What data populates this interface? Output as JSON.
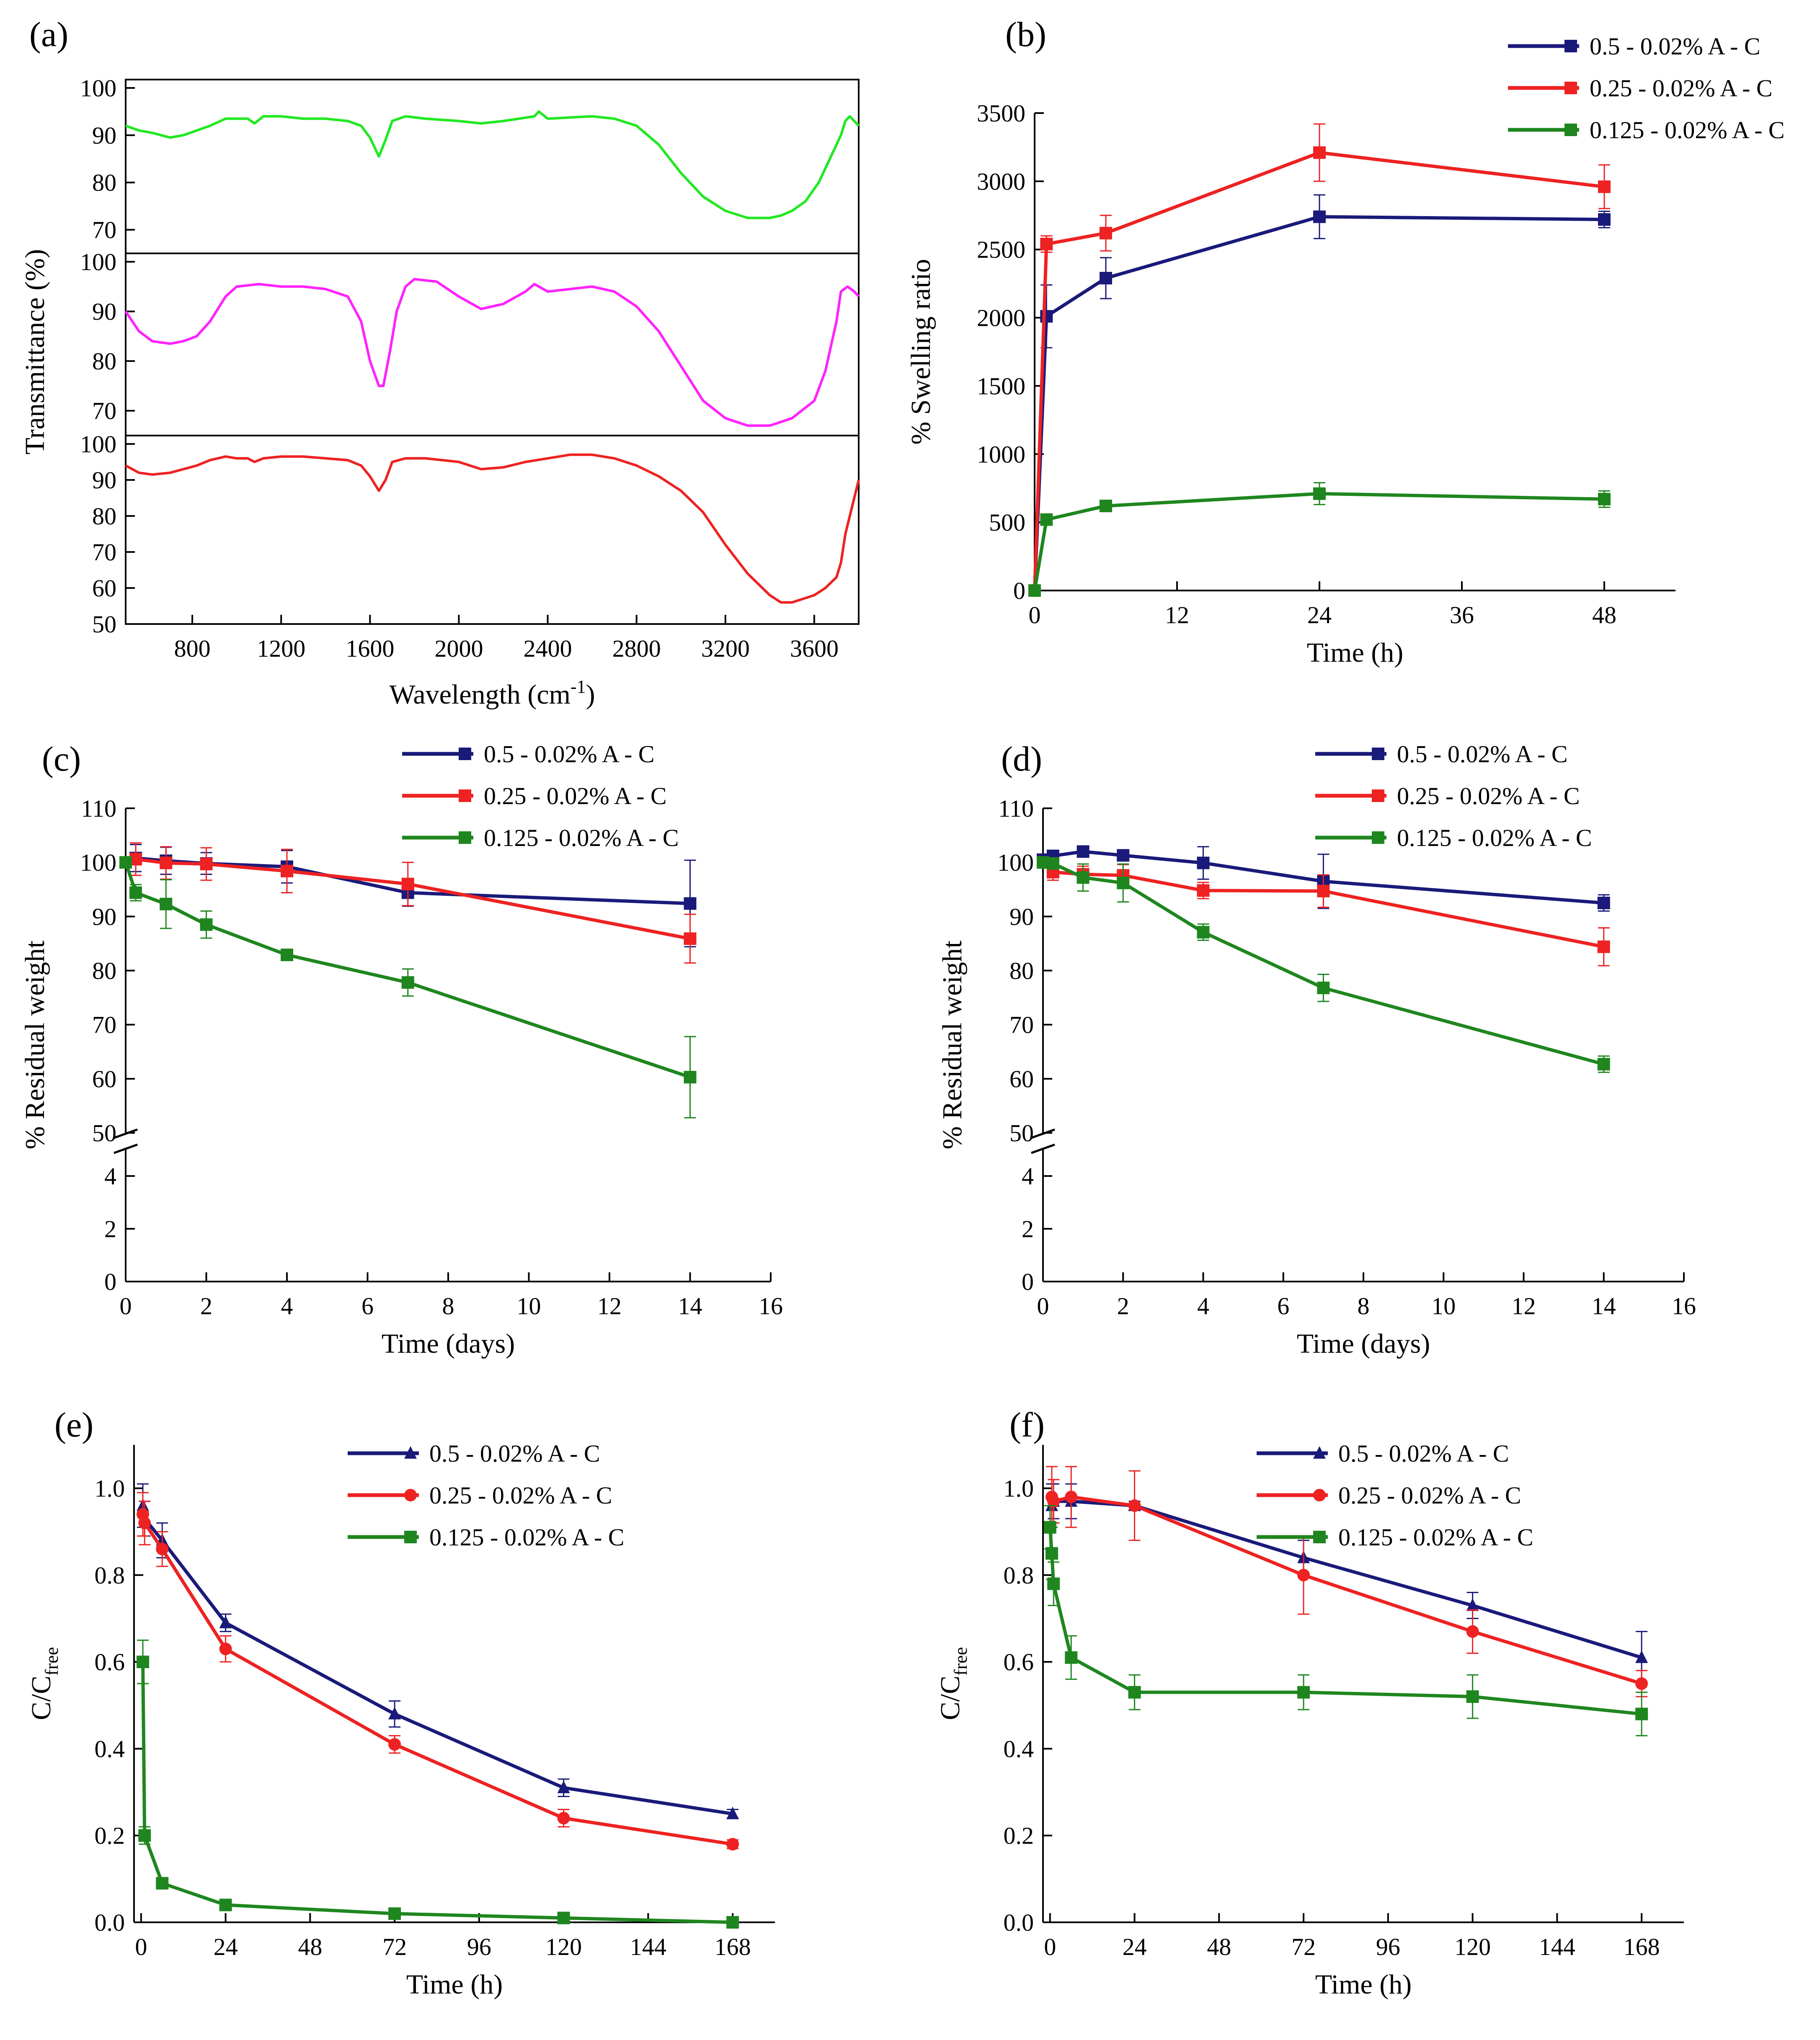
{
  "chart_data": [
    {
      "panel": "(a)",
      "type": "line",
      "title": "",
      "xlabel": "Wavelength (cm",
      "xlabel_sup": "-1",
      "xlabel_end": ")",
      "ylabel": "Transmittance (%)",
      "xlim": [
        500,
        3800
      ],
      "xticks": [
        800,
        1200,
        1600,
        2000,
        2400,
        2800,
        3200,
        3600
      ],
      "subplots": [
        {
          "color": "#22e822",
          "ylim": [
            65,
            100
          ],
          "yticks": [
            70,
            80,
            90,
            100
          ],
          "x": [
            500,
            560,
            620,
            700,
            760,
            820,
            880,
            950,
            1000,
            1050,
            1080,
            1120,
            1200,
            1300,
            1400,
            1500,
            1560,
            1600,
            1640,
            1670,
            1700,
            1760,
            1850,
            2000,
            2100,
            2200,
            2340,
            2360,
            2400,
            2600,
            2700,
            2800,
            2900,
            3000,
            3100,
            3200,
            3300,
            3400,
            3450,
            3500,
            3560,
            3620,
            3680,
            3720,
            3740,
            3760,
            3780,
            3800
          ],
          "y": [
            92,
            91,
            90.5,
            89.5,
            90,
            91,
            92,
            93.5,
            93.5,
            93.5,
            92.5,
            94,
            94,
            93.5,
            93.5,
            93,
            92,
            89.5,
            85.5,
            89,
            93,
            94,
            93.5,
            93,
            92.5,
            93,
            94,
            95,
            93.5,
            94,
            93.5,
            92,
            88,
            82,
            77,
            74,
            72.5,
            72.5,
            73,
            74,
            76,
            80,
            86,
            90,
            93,
            94,
            93,
            92
          ]
        },
        {
          "color": "#ff22ff",
          "ylim": [
            65,
            100
          ],
          "yticks": [
            70,
            80,
            90,
            100
          ],
          "x": [
            500,
            560,
            620,
            700,
            760,
            820,
            880,
            950,
            1000,
            1100,
            1200,
            1300,
            1400,
            1500,
            1560,
            1600,
            1640,
            1660,
            1690,
            1720,
            1760,
            1800,
            1900,
            2000,
            2100,
            2200,
            2300,
            2340,
            2360,
            2400,
            2500,
            2600,
            2700,
            2800,
            2900,
            3000,
            3100,
            3200,
            3300,
            3400,
            3500,
            3600,
            3650,
            3700,
            3720,
            3750,
            3780,
            3800
          ],
          "y": [
            90,
            86,
            84,
            83.5,
            84,
            85,
            88,
            93,
            95,
            95.5,
            95,
            95,
            94.5,
            93,
            88,
            80,
            75,
            75,
            82,
            90,
            95,
            96.5,
            96,
            93,
            90.5,
            91.5,
            94,
            95.5,
            95,
            94,
            94.5,
            95,
            94,
            91,
            86,
            79,
            72,
            68.5,
            67,
            67,
            68.5,
            72,
            78,
            88,
            94,
            95,
            94,
            93
          ]
        },
        {
          "color": "#ee2222",
          "ylim": [
            50,
            100
          ],
          "yticks": [
            50,
            60,
            70,
            80,
            90,
            100
          ],
          "x": [
            500,
            560,
            620,
            700,
            760,
            820,
            880,
            950,
            1000,
            1050,
            1080,
            1120,
            1200,
            1300,
            1400,
            1500,
            1560,
            1600,
            1640,
            1670,
            1700,
            1760,
            1850,
            2000,
            2100,
            2200,
            2300,
            2400,
            2500,
            2600,
            2700,
            2800,
            2900,
            3000,
            3100,
            3200,
            3300,
            3400,
            3450,
            3500,
            3550,
            3600,
            3650,
            3700,
            3720,
            3740,
            3760,
            3780,
            3800
          ],
          "y": [
            94,
            92,
            91.5,
            92,
            93,
            94,
            95.5,
            96.5,
            96,
            96,
            95,
            96,
            96.5,
            96.5,
            96,
            95.5,
            94,
            91,
            87,
            90,
            95,
            96,
            96,
            95,
            93,
            93.5,
            95,
            96,
            97,
            97,
            96,
            94,
            91,
            87,
            81,
            72,
            64,
            58,
            56,
            56,
            57,
            58,
            60,
            63,
            67,
            75,
            80,
            85,
            90
          ]
        }
      ]
    },
    {
      "panel": "(b)",
      "type": "line",
      "title": "",
      "xlabel": "Time (h)",
      "ylabel": "% Swelling ratio",
      "xlim": [
        0,
        54
      ],
      "ylim": [
        0,
        3500
      ],
      "xticks": [
        0,
        12,
        24,
        36,
        48
      ],
      "yticks": [
        0,
        500,
        1000,
        1500,
        2000,
        2500,
        3000,
        3500
      ],
      "legend_position": "top-right",
      "series": [
        {
          "name": "0.5 - 0.02% A - C",
          "color": "#1a1a7a",
          "marker": "square",
          "x": [
            0,
            1,
            6,
            24,
            48
          ],
          "y": [
            0,
            2010,
            2290,
            2740,
            2720
          ],
          "err": [
            0,
            230,
            150,
            160,
            60
          ]
        },
        {
          "name": "0.25 - 0.02% A - C",
          "color": "#ee2222",
          "marker": "square",
          "x": [
            0,
            1,
            6,
            24,
            48
          ],
          "y": [
            0,
            2540,
            2620,
            3210,
            2960
          ],
          "err": [
            0,
            60,
            130,
            210,
            160
          ]
        },
        {
          "name": "0.125 - 0.02% A - C",
          "color": "#1f861f",
          "marker": "square",
          "x": [
            0,
            1,
            6,
            24,
            48
          ],
          "y": [
            0,
            520,
            620,
            710,
            670
          ],
          "err": [
            0,
            30,
            30,
            80,
            60
          ]
        }
      ]
    },
    {
      "panel": "(c)",
      "type": "line",
      "title": "",
      "xlabel": "Time (days)",
      "ylabel": "% Residual weight",
      "xlim": [
        0,
        16
      ],
      "axis_break": true,
      "ylim_lower": [
        0,
        5
      ],
      "ylim_upper": [
        50,
        110
      ],
      "xticks": [
        0,
        2,
        4,
        6,
        8,
        10,
        12,
        14,
        16
      ],
      "yticks_lower": [
        0,
        2,
        4
      ],
      "yticks_upper": [
        50,
        60,
        70,
        80,
        90,
        100,
        110
      ],
      "legend_position": "top-right",
      "series": [
        {
          "name": "0.5 - 0.02% A - C",
          "color": "#1a1a7a",
          "marker": "square",
          "x": [
            0.25,
            1,
            2,
            4,
            7,
            14
          ],
          "y": [
            100.8,
            100.3,
            99.8,
            99.2,
            94.4,
            92.4
          ],
          "err": [
            2.5,
            2.5,
            2.0,
            3.0,
            2.5,
            8.0
          ]
        },
        {
          "name": "0.25 - 0.02% A - C",
          "color": "#ee2222",
          "marker": "square",
          "x": [
            0.25,
            1,
            2,
            4,
            7,
            14
          ],
          "y": [
            100.6,
            99.9,
            99.7,
            98.4,
            96.0,
            85.9
          ],
          "err": [
            3.0,
            3.0,
            3.0,
            4.0,
            4.0,
            4.5
          ]
        },
        {
          "name": "0.125 - 0.02% A - C",
          "color": "#1f861f",
          "marker": "square",
          "x": [
            0,
            0.25,
            1,
            2,
            4,
            7,
            14
          ],
          "y": [
            100.0,
            94.4,
            92.3,
            88.5,
            82.9,
            77.8,
            60.3
          ],
          "err": [
            0,
            1.5,
            4.5,
            2.5,
            0.5,
            2.5,
            7.5
          ]
        }
      ]
    },
    {
      "panel": "(d)",
      "type": "line",
      "title": "",
      "xlabel": "Time (days)",
      "ylabel": "% Residual weight",
      "xlim": [
        0,
        16
      ],
      "axis_break": true,
      "ylim_lower": [
        0,
        5
      ],
      "ylim_upper": [
        50,
        110
      ],
      "xticks": [
        0,
        2,
        4,
        6,
        8,
        10,
        12,
        14,
        16
      ],
      "yticks_lower": [
        0,
        2,
        4
      ],
      "yticks_upper": [
        50,
        60,
        70,
        80,
        90,
        100,
        110
      ],
      "legend_position": "top-right",
      "series": [
        {
          "name": "0.5 - 0.02% A - C",
          "color": "#1a1a7a",
          "marker": "square",
          "x": [
            0,
            0.25,
            1,
            2,
            4,
            7,
            14
          ],
          "y": [
            100.5,
            101.2,
            102.0,
            101.3,
            99.9,
            96.5,
            92.5
          ],
          "err": [
            0,
            1.0,
            0.8,
            1.0,
            3.0,
            5.0,
            1.5
          ]
        },
        {
          "name": "0.25 - 0.02% A - C",
          "color": "#ee2222",
          "marker": "square",
          "x": [
            0,
            0.25,
            1,
            2,
            4,
            7,
            14
          ],
          "y": [
            100.0,
            98.2,
            97.8,
            97.6,
            94.8,
            94.7,
            84.4
          ],
          "err": [
            0,
            1.5,
            1.5,
            2.0,
            1.5,
            3.0,
            3.5
          ]
        },
        {
          "name": "0.125 - 0.02% A - C",
          "color": "#1f861f",
          "marker": "square",
          "x": [
            0,
            0.25,
            1,
            2,
            4,
            7,
            14
          ],
          "y": [
            100.0,
            99.8,
            97.2,
            96.2,
            87.1,
            76.8,
            62.7
          ],
          "err": [
            0,
            1.0,
            2.5,
            3.5,
            1.5,
            2.5,
            1.5
          ]
        }
      ]
    },
    {
      "panel": "(e)",
      "type": "line",
      "title": "",
      "xlabel": "Time (h)",
      "ylabel": "C/C",
      "ylabel_sub": "free",
      "xlim": [
        -2,
        180
      ],
      "ylim": [
        0,
        1.1
      ],
      "xticks": [
        0,
        24,
        48,
        72,
        96,
        120,
        144,
        168
      ],
      "yticks": [
        0.0,
        0.2,
        0.4,
        0.6,
        0.8,
        1.0
      ],
      "legend_position": "top-right",
      "series": [
        {
          "name": "0.5 - 0.02% A - C",
          "color": "#1a1a7a",
          "marker": "triangle",
          "x": [
            0.5,
            1,
            6,
            24,
            72,
            120,
            168
          ],
          "y": [
            0.96,
            0.93,
            0.88,
            0.69,
            0.48,
            0.31,
            0.25
          ],
          "err": [
            0.05,
            0.04,
            0.04,
            0.02,
            0.03,
            0.02,
            0.01
          ]
        },
        {
          "name": "0.25 - 0.02% A - C",
          "color": "#ee2222",
          "marker": "circle",
          "x": [
            0.5,
            1,
            6,
            24,
            72,
            120,
            168
          ],
          "y": [
            0.94,
            0.92,
            0.86,
            0.63,
            0.41,
            0.24,
            0.18
          ],
          "err": [
            0.05,
            0.05,
            0.04,
            0.03,
            0.02,
            0.02,
            0.01
          ]
        },
        {
          "name": "0.125 - 0.02% A - C",
          "color": "#1f861f",
          "marker": "square",
          "x": [
            0.5,
            1,
            6,
            24,
            72,
            120,
            168
          ],
          "y": [
            0.6,
            0.2,
            0.09,
            0.04,
            0.02,
            0.01,
            0.0
          ],
          "err": [
            0.05,
            0.02,
            0.01,
            0.005,
            0.005,
            0.005,
            0.005
          ]
        }
      ]
    },
    {
      "panel": "(f)",
      "type": "line",
      "title": "",
      "xlabel": "Time (h)",
      "ylabel": "C/C",
      "ylabel_sub": "free",
      "xlim": [
        -2,
        180
      ],
      "ylim": [
        0,
        1.1
      ],
      "xticks": [
        0,
        24,
        48,
        72,
        96,
        120,
        144,
        168
      ],
      "yticks": [
        0.0,
        0.2,
        0.4,
        0.6,
        0.8,
        1.0
      ],
      "legend_position": "top-right",
      "series": [
        {
          "name": "0.5 - 0.02% A - C",
          "color": "#1a1a7a",
          "marker": "triangle",
          "x": [
            0.5,
            1,
            6,
            24,
            72,
            120,
            168
          ],
          "y": [
            0.96,
            0.97,
            0.97,
            0.96,
            0.84,
            0.73,
            0.61
          ],
          "err": [
            0.05,
            0.04,
            0.04,
            0.01,
            0.04,
            0.03,
            0.06
          ]
        },
        {
          "name": "0.25 - 0.02% A - C",
          "color": "#ee2222",
          "marker": "circle",
          "x": [
            0.5,
            1,
            6,
            24,
            72,
            120,
            168
          ],
          "y": [
            0.98,
            0.97,
            0.98,
            0.96,
            0.8,
            0.67,
            0.55
          ],
          "err": [
            0.07,
            0.05,
            0.07,
            0.08,
            0.09,
            0.05,
            0.03
          ]
        },
        {
          "name": "0.125 - 0.02% A - C",
          "color": "#1f861f",
          "marker": "square",
          "x": [
            0,
            0.5,
            1,
            6,
            24,
            72,
            120,
            168
          ],
          "y": [
            0.91,
            0.85,
            0.78,
            0.61,
            0.53,
            0.53,
            0.52,
            0.48
          ],
          "err": [
            0.05,
            0.06,
            0.05,
            0.05,
            0.04,
            0.04,
            0.05,
            0.05
          ]
        }
      ]
    }
  ]
}
